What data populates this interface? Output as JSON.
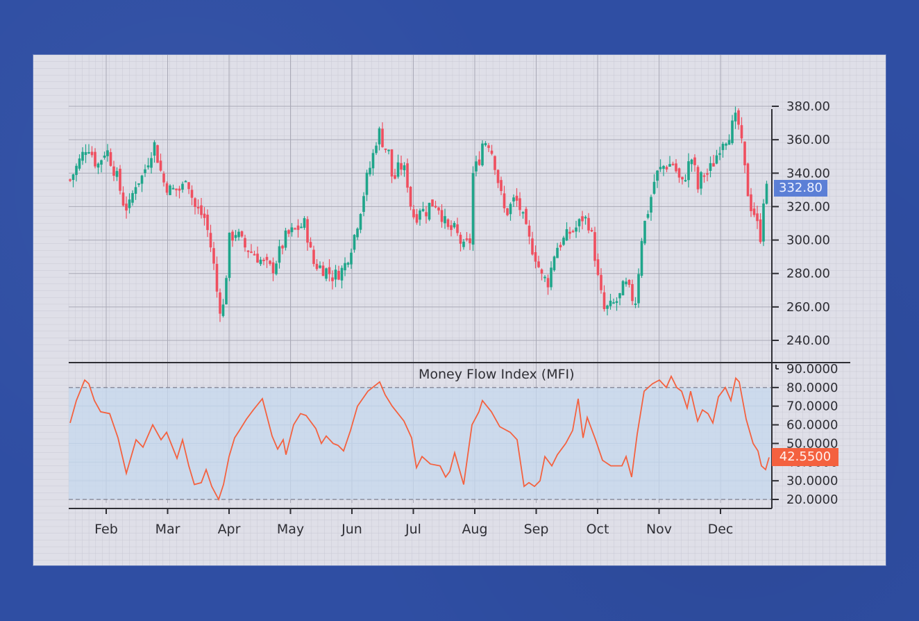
{
  "chart_data": [
    {
      "type": "candlestick",
      "title": "",
      "xlabel": "",
      "ylabel": "",
      "ylim": [
        230,
        392
      ],
      "y_ticks": [
        "380.00",
        "360.00",
        "340.00",
        "320.00",
        "300.00",
        "280.00",
        "260.00",
        "240.00"
      ],
      "x_ticks": [
        "Feb",
        "Mar",
        "Apr",
        "May",
        "Jun",
        "Jul",
        "Aug",
        "Sep",
        "Oct",
        "Nov",
        "Dec"
      ],
      "last_price_label": "332.80",
      "last_price": 332.8,
      "up_color": "#1fa58a",
      "down_color": "#ef4f5f",
      "close_waypoints": [
        [
          101,
          336
        ],
        [
          120,
          352
        ],
        [
          126,
          358
        ],
        [
          140,
          344
        ],
        [
          153,
          355
        ],
        [
          168,
          338
        ],
        [
          178,
          322
        ],
        [
          185,
          318
        ],
        [
          195,
          334
        ],
        [
          205,
          338
        ],
        [
          222,
          358
        ],
        [
          235,
          335
        ],
        [
          245,
          330
        ],
        [
          262,
          330
        ],
        [
          268,
          340
        ],
        [
          280,
          320
        ],
        [
          295,
          313
        ],
        [
          302,
          300
        ],
        [
          309,
          282
        ],
        [
          315,
          260
        ],
        [
          322,
          260
        ],
        [
          330,
          300
        ],
        [
          340,
          305
        ],
        [
          352,
          296
        ],
        [
          366,
          292
        ],
        [
          380,
          286
        ],
        [
          392,
          282
        ],
        [
          400,
          290
        ],
        [
          412,
          302
        ],
        [
          425,
          306
        ],
        [
          440,
          310
        ],
        [
          446,
          295
        ],
        [
          452,
          286
        ],
        [
          470,
          282
        ],
        [
          480,
          278
        ],
        [
          495,
          283
        ],
        [
          505,
          295
        ],
        [
          512,
          305
        ],
        [
          520,
          320
        ],
        [
          528,
          336
        ],
        [
          536,
          348
        ],
        [
          545,
          366
        ],
        [
          552,
          358
        ],
        [
          560,
          352
        ],
        [
          566,
          334
        ],
        [
          576,
          345
        ],
        [
          585,
          340
        ],
        [
          592,
          320
        ],
        [
          598,
          312
        ],
        [
          605,
          320
        ],
        [
          612,
          316
        ],
        [
          620,
          322
        ],
        [
          630,
          322
        ],
        [
          645,
          306
        ],
        [
          655,
          306
        ],
        [
          668,
          295
        ],
        [
          678,
          300
        ],
        [
          680,
          338
        ],
        [
          690,
          348
        ],
        [
          696,
          360
        ],
        [
          705,
          358
        ],
        [
          712,
          348
        ],
        [
          720,
          330
        ],
        [
          728,
          315
        ],
        [
          735,
          320
        ],
        [
          742,
          325
        ],
        [
          750,
          318
        ],
        [
          760,
          302
        ],
        [
          772,
          290
        ],
        [
          780,
          278
        ],
        [
          790,
          275
        ],
        [
          800,
          295
        ],
        [
          812,
          300
        ],
        [
          822,
          305
        ],
        [
          832,
          308
        ],
        [
          840,
          314
        ],
        [
          848,
          310
        ],
        [
          855,
          298
        ],
        [
          860,
          280
        ],
        [
          870,
          258
        ],
        [
          880,
          260
        ],
        [
          892,
          265
        ],
        [
          900,
          274
        ],
        [
          908,
          268
        ],
        [
          915,
          262
        ],
        [
          920,
          282
        ],
        [
          925,
          304
        ],
        [
          935,
          320
        ],
        [
          944,
          338
        ],
        [
          955,
          344
        ],
        [
          970,
          346
        ],
        [
          982,
          332
        ],
        [
          992,
          345
        ],
        [
          998,
          350
        ],
        [
          1005,
          330
        ],
        [
          1012,
          340
        ],
        [
          1020,
          340
        ],
        [
          1030,
          348
        ],
        [
          1040,
          360
        ],
        [
          1048,
          362
        ],
        [
          1055,
          368
        ],
        [
          1062,
          374
        ],
        [
          1068,
          358
        ],
        [
          1075,
          335
        ],
        [
          1080,
          322
        ],
        [
          1088,
          315
        ],
        [
          1095,
          300
        ],
        [
          1100,
          325
        ],
        [
          1107,
          333
        ]
      ]
    },
    {
      "type": "line",
      "title": "Money Flow Index (MFI)",
      "ylim": [
        15,
        92
      ],
      "y_ticks": [
        "90.0000",
        "80.0000",
        "70.0000",
        "60.0000",
        "50.0000",
        "40.0000",
        "30.0000",
        "20.0000"
      ],
      "overbought": 80,
      "oversold": 20,
      "band_color": "#c5d8ee",
      "line_color": "#f4613f",
      "last_value_label": "42.5500",
      "last_value": 42.55,
      "points": [
        [
          101,
          61
        ],
        [
          110,
          73
        ],
        [
          122,
          84
        ],
        [
          128,
          82
        ],
        [
          136,
          73
        ],
        [
          145,
          67
        ],
        [
          158,
          66
        ],
        [
          170,
          53
        ],
        [
          182,
          34
        ],
        [
          196,
          52
        ],
        [
          206,
          48
        ],
        [
          220,
          60
        ],
        [
          232,
          52
        ],
        [
          240,
          56
        ],
        [
          255,
          42
        ],
        [
          263,
          52
        ],
        [
          272,
          38
        ],
        [
          280,
          28
        ],
        [
          290,
          29
        ],
        [
          297,
          36
        ],
        [
          305,
          27
        ],
        [
          315,
          20
        ],
        [
          322,
          28
        ],
        [
          330,
          43
        ],
        [
          338,
          53
        ],
        [
          345,
          57
        ],
        [
          355,
          63
        ],
        [
          365,
          68
        ],
        [
          378,
          74
        ],
        [
          392,
          54
        ],
        [
          400,
          47
        ],
        [
          408,
          52
        ],
        [
          412,
          44
        ],
        [
          423,
          60
        ],
        [
          433,
          66
        ],
        [
          441,
          65
        ],
        [
          455,
          58
        ],
        [
          463,
          50
        ],
        [
          470,
          54
        ],
        [
          480,
          50
        ],
        [
          487,
          49
        ],
        [
          495,
          46
        ],
        [
          505,
          57
        ],
        [
          515,
          70
        ],
        [
          530,
          78
        ],
        [
          547,
          83
        ],
        [
          555,
          76
        ],
        [
          565,
          70
        ],
        [
          582,
          62
        ],
        [
          593,
          53
        ],
        [
          600,
          37
        ],
        [
          608,
          43
        ],
        [
          620,
          39
        ],
        [
          634,
          38
        ],
        [
          642,
          32
        ],
        [
          648,
          35
        ],
        [
          655,
          45
        ],
        [
          668,
          28
        ],
        [
          680,
          60
        ],
        [
          690,
          67
        ],
        [
          695,
          73
        ],
        [
          708,
          67
        ],
        [
          720,
          59
        ],
        [
          735,
          56
        ],
        [
          745,
          52
        ],
        [
          755,
          27
        ],
        [
          762,
          29
        ],
        [
          770,
          27
        ],
        [
          778,
          30
        ],
        [
          785,
          43
        ],
        [
          795,
          38
        ],
        [
          803,
          44
        ],
        [
          815,
          50
        ],
        [
          825,
          57
        ],
        [
          833,
          74
        ],
        [
          840,
          53
        ],
        [
          846,
          64
        ],
        [
          858,
          52
        ],
        [
          868,
          41
        ],
        [
          880,
          38
        ],
        [
          896,
          38
        ],
        [
          902,
          43
        ],
        [
          910,
          32
        ],
        [
          918,
          55
        ],
        [
          928,
          78
        ],
        [
          940,
          82
        ],
        [
          950,
          84
        ],
        [
          960,
          80
        ],
        [
          967,
          86
        ],
        [
          975,
          80
        ],
        [
          982,
          78
        ],
        [
          990,
          69
        ],
        [
          995,
          78
        ],
        [
          1005,
          62
        ],
        [
          1012,
          68
        ],
        [
          1020,
          66
        ],
        [
          1027,
          61
        ],
        [
          1035,
          75
        ],
        [
          1045,
          80
        ],
        [
          1053,
          73
        ],
        [
          1060,
          85
        ],
        [
          1065,
          83
        ],
        [
          1075,
          63
        ],
        [
          1085,
          50
        ],
        [
          1092,
          46
        ],
        [
          1097,
          38
        ],
        [
          1103,
          36
        ],
        [
          1108,
          42.55
        ]
      ]
    }
  ],
  "labels": {
    "mfi_title": "Money Flow Index (MFI)",
    "price_badge": "332.80",
    "mfi_badge": "42.5500"
  }
}
